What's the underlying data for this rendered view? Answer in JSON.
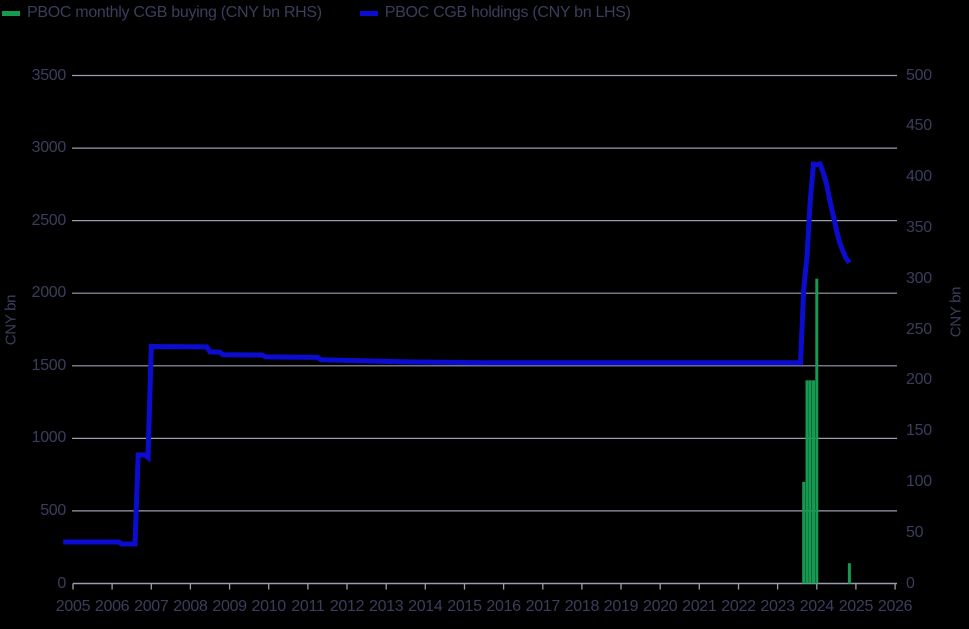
{
  "colors": {
    "background": "#000000",
    "text": "#3a3e5c",
    "gridline": "#9c9dac",
    "bar_green": "#169a50",
    "line_blue": "#0c0cd0"
  },
  "legend": [
    {
      "label": "PBOC monthly CGB buying (CNY bn RHS)",
      "marker": "green-dash"
    },
    {
      "label": "PBOC CGB holdings (CNY bn LHS)",
      "marker": "blue-dash"
    }
  ],
  "axes": {
    "left": {
      "title": "CNY bn",
      "range": [
        0,
        3500
      ],
      "ticks": [
        0,
        500,
        1000,
        1500,
        2000,
        2500,
        3000,
        3500
      ]
    },
    "right": {
      "title": "CNY bn",
      "range": [
        0,
        500
      ],
      "ticks": [
        0,
        50,
        100,
        150,
        200,
        250,
        300,
        350,
        400,
        450,
        500
      ]
    },
    "x": {
      "tick_labels": [
        "2005",
        "2006",
        "2007",
        "2008",
        "2009",
        "2010",
        "2011",
        "2012",
        "2013",
        "2014",
        "2015",
        "2016",
        "2017",
        "2018",
        "2019",
        "2020",
        "2021",
        "2022",
        "2023",
        "2024",
        "2025",
        "2026"
      ],
      "note": "year ticks mark year-end positions"
    }
  },
  "chart_data": {
    "type": "combo",
    "title": "",
    "xlabel": "",
    "ylabel_left": "CNY bn",
    "ylabel_right": "CNY bn",
    "grid": true,
    "legend_position": "top-left",
    "x_range_years": [
      2005,
      2026
    ],
    "series": [
      {
        "name": "PBOC monthly CGB buying (CNY bn RHS)",
        "type": "bar",
        "axis": "right",
        "color": "#169a50",
        "points": [
          {
            "t": "2024-08",
            "v": 100
          },
          {
            "t": "2024-09",
            "v": 200
          },
          {
            "t": "2024-10",
            "v": 200
          },
          {
            "t": "2024-11",
            "v": 200
          },
          {
            "t": "2024-12",
            "v": 300
          },
          {
            "t": "2025-10",
            "v": 20
          }
        ]
      },
      {
        "name": "PBOC CGB holdings (CNY bn LHS)",
        "type": "line",
        "axis": "left",
        "color": "#0c0cd0",
        "points": [
          {
            "t": "2005-09",
            "v": 286
          },
          {
            "t": "2007-02",
            "v": 286
          },
          {
            "t": "2007-03",
            "v": 272
          },
          {
            "t": "2007-07",
            "v": 272
          },
          {
            "t": "2007-08",
            "v": 886
          },
          {
            "t": "2007-10",
            "v": 886
          },
          {
            "t": "2007-11",
            "v": 868
          },
          {
            "t": "2007-12",
            "v": 1633
          },
          {
            "t": "2009-05",
            "v": 1630
          },
          {
            "t": "2009-06",
            "v": 1596
          },
          {
            "t": "2009-09",
            "v": 1594
          },
          {
            "t": "2009-10",
            "v": 1576
          },
          {
            "t": "2010-10",
            "v": 1574
          },
          {
            "t": "2010-11",
            "v": 1561
          },
          {
            "t": "2012-03",
            "v": 1558
          },
          {
            "t": "2012-04",
            "v": 1541
          },
          {
            "t": "2013-06",
            "v": 1534
          },
          {
            "t": "2014-06",
            "v": 1527
          },
          {
            "t": "2016-06",
            "v": 1521
          },
          {
            "t": "2024-07",
            "v": 1521
          },
          {
            "t": "2024-08",
            "v": 2025
          },
          {
            "t": "2024-09",
            "v": 2251
          },
          {
            "t": "2024-10",
            "v": 2631
          },
          {
            "t": "2024-11",
            "v": 2889
          },
          {
            "t": "2024-12",
            "v": 2886
          },
          {
            "t": "2025-01",
            "v": 2890
          },
          {
            "t": "2025-02",
            "v": 2830
          },
          {
            "t": "2025-03",
            "v": 2750
          },
          {
            "t": "2025-04",
            "v": 2640
          },
          {
            "t": "2025-05",
            "v": 2540
          },
          {
            "t": "2025-06",
            "v": 2440
          },
          {
            "t": "2025-07",
            "v": 2350
          },
          {
            "t": "2025-08",
            "v": 2290
          },
          {
            "t": "2025-09",
            "v": 2240
          },
          {
            "t": "2025-10",
            "v": 2210
          }
        ]
      }
    ]
  }
}
